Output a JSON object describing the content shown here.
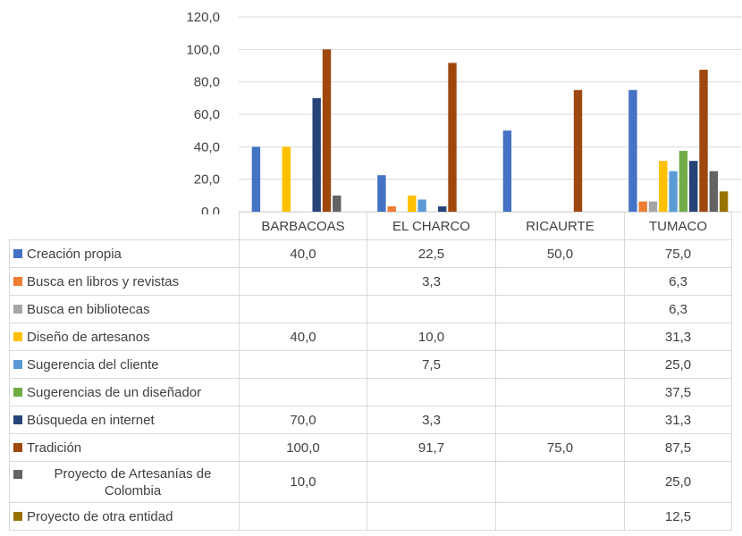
{
  "chart_data": {
    "type": "bar",
    "categories": [
      "BARBACOAS",
      "EL CHARCO",
      "RICAURTE",
      "TUMACO"
    ],
    "ylim": [
      0,
      120
    ],
    "yticks": [
      "0,0",
      "20,0",
      "40,0",
      "60,0",
      "80,0",
      "100,0",
      "120,0"
    ],
    "grid": true,
    "legend": "data table below chart",
    "series": [
      {
        "name": "Creación propia",
        "color": "#4472c4",
        "values": [
          40.0,
          22.5,
          50.0,
          75.0
        ],
        "labels": [
          "40,0",
          "22,5",
          "50,0",
          "75,0"
        ]
      },
      {
        "name": "Busca en libros y revistas",
        "color": "#ed7d31",
        "values": [
          null,
          3.3,
          null,
          6.3
        ],
        "labels": [
          "",
          "3,3",
          "",
          "6,3"
        ]
      },
      {
        "name": "Busca en bibliotecas",
        "color": "#a5a5a5",
        "values": [
          null,
          null,
          null,
          6.3
        ],
        "labels": [
          "",
          "",
          "",
          "6,3"
        ]
      },
      {
        "name": "Diseño de artesanos",
        "color": "#ffc000",
        "values": [
          40.0,
          10.0,
          null,
          31.3
        ],
        "labels": [
          "40,0",
          "10,0",
          "",
          "31,3"
        ]
      },
      {
        "name": "Sugerencia del cliente",
        "color": "#5b9bd5",
        "values": [
          null,
          7.5,
          null,
          25.0
        ],
        "labels": [
          "",
          "7,5",
          "",
          "25,0"
        ]
      },
      {
        "name": "Sugerencias de un diseñador",
        "color": "#70ad47",
        "values": [
          null,
          null,
          null,
          37.5
        ],
        "labels": [
          "",
          "",
          "",
          "37,5"
        ]
      },
      {
        "name": "Búsqueda en internet",
        "color": "#264478",
        "values": [
          70.0,
          3.3,
          null,
          31.3
        ],
        "labels": [
          "70,0",
          "3,3",
          "",
          "31,3"
        ]
      },
      {
        "name": "Tradición",
        "color": "#9e480e",
        "values": [
          100.0,
          91.7,
          75.0,
          87.5
        ],
        "labels": [
          "100,0",
          "91,7",
          "75,0",
          "87,5"
        ]
      },
      {
        "name": "Proyecto de Artesanías de Colombia",
        "color": "#636363",
        "values": [
          10.0,
          null,
          null,
          25.0
        ],
        "labels": [
          "10,0",
          "",
          "",
          "25,0"
        ]
      },
      {
        "name": "Proyecto de otra entidad",
        "color": "#997300",
        "values": [
          null,
          null,
          null,
          12.5
        ],
        "labels": [
          "",
          "",
          "",
          "12,5"
        ]
      }
    ]
  }
}
